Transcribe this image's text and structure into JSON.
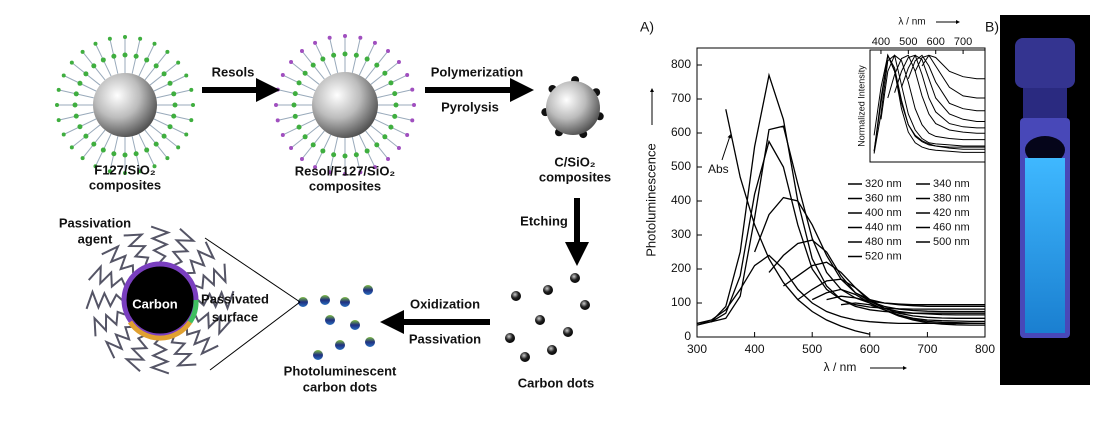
{
  "schematic": {
    "sphere1_label": [
      "F127/SiO₂",
      "composites"
    ],
    "arrow1_label": "Resols",
    "sphere2_label": [
      "Resol/F127/SiO₂",
      "composites"
    ],
    "arrow2_labels": [
      "Polymerization",
      "Pyrolysis"
    ],
    "sphere3_label": [
      "C/SiO₂",
      "composites"
    ],
    "arrow3_label": "Etching",
    "dots_label": "Carbon dots",
    "arrow4_labels": [
      "Oxidization",
      "Passivation"
    ],
    "pl_dots_label": [
      "Photoluminescent",
      "carbon dots"
    ],
    "agent_label": [
      "Passivation",
      "agent"
    ],
    "core_label": "Carbon",
    "surface_label": [
      "Passivated",
      "surface"
    ]
  },
  "panel_a_label": "A)",
  "panel_b_label": "B)",
  "chart_data": {
    "type": "line",
    "x_label": "λ / nm",
    "y_label": "Photoluminescence",
    "x": [
      300,
      325,
      350,
      375,
      400,
      425,
      450,
      475,
      500,
      525,
      550,
      575,
      600,
      625,
      650,
      675,
      700,
      725,
      750,
      775,
      800
    ],
    "xlim": [
      300,
      800
    ],
    "xticks": [
      300,
      400,
      500,
      600,
      700,
      800
    ],
    "ylim": [
      0,
      850
    ],
    "yticks": [
      0,
      100,
      200,
      300,
      400,
      500,
      600,
      700,
      800
    ],
    "series": [
      {
        "name": "320 nm",
        "color": "#c0392b",
        "values": [
          40,
          50,
          80,
          140,
          210,
          240,
          200,
          140,
          100,
          75,
          60,
          50,
          45,
          42,
          40,
          40,
          40,
          40,
          40,
          40,
          40
        ]
      },
      {
        "name": "340 nm",
        "color": "#b63fb0",
        "values": [
          35,
          45,
          90,
          250,
          560,
          770,
          640,
          400,
          230,
          150,
          110,
          90,
          80,
          75,
          72,
          70,
          70,
          70,
          70,
          70,
          70
        ]
      },
      {
        "name": "360 nm",
        "color": "#8e44ad",
        "values": [
          40,
          45,
          70,
          180,
          420,
          575,
          500,
          330,
          200,
          140,
          110,
          95,
          88,
          85,
          83,
          82,
          82,
          82,
          82,
          82,
          82
        ]
      },
      {
        "name": "380 nm",
        "color": "#1f5fa8",
        "values": [
          null,
          45,
          55,
          120,
          350,
          610,
          620,
          450,
          290,
          190,
          140,
          115,
          105,
          100,
          97,
          95,
          95,
          95,
          95,
          95,
          95
        ]
      },
      {
        "name": "400 nm",
        "color": "#2c3e9a",
        "values": [
          null,
          null,
          null,
          null,
          250,
          360,
          410,
          400,
          330,
          240,
          170,
          130,
          110,
          100,
          95,
          92,
          90,
          90,
          90,
          90,
          90
        ]
      },
      {
        "name": "420 nm",
        "color": "#168090",
        "values": [
          null,
          null,
          null,
          null,
          null,
          190,
          240,
          275,
          285,
          250,
          180,
          130,
          105,
          90,
          82,
          78,
          76,
          75,
          75,
          75,
          75
        ]
      },
      {
        "name": "440 nm",
        "color": "#27a060",
        "values": [
          null,
          null,
          null,
          null,
          null,
          null,
          150,
          180,
          210,
          220,
          190,
          145,
          105,
          85,
          75,
          70,
          68,
          66,
          65,
          65,
          65
        ]
      },
      {
        "name": "460 nm",
        "color": "#5fb83c",
        "values": [
          null,
          null,
          null,
          null,
          null,
          null,
          null,
          110,
          140,
          165,
          170,
          145,
          110,
          85,
          70,
          62,
          58,
          56,
          55,
          55,
          55
        ]
      },
      {
        "name": "480 nm",
        "color": "#e3d33a",
        "values": [
          null,
          null,
          null,
          null,
          null,
          null,
          null,
          null,
          110,
          130,
          140,
          125,
          100,
          80,
          65,
          55,
          50,
          48,
          47,
          46,
          46
        ]
      },
      {
        "name": "500 nm",
        "color": "#f09a5c",
        "values": [
          null,
          null,
          null,
          null,
          null,
          null,
          null,
          null,
          null,
          110,
          120,
          115,
          100,
          80,
          62,
          52,
          46,
          43,
          42,
          41,
          40
        ]
      },
      {
        "name": "520 nm",
        "color": "#c27ae0",
        "values": [
          null,
          null,
          null,
          null,
          null,
          null,
          null,
          null,
          null,
          null,
          95,
          100,
          95,
          80,
          62,
          50,
          42,
          38,
          36,
          35,
          35
        ]
      }
    ],
    "absorbance": {
      "name": "Abs",
      "color": "#000000",
      "values": [
        null,
        null,
        670,
        470,
        330,
        230,
        160,
        110,
        75,
        50,
        32,
        18,
        8,
        null,
        null,
        null,
        null,
        null,
        null,
        null,
        null
      ]
    },
    "inset": {
      "x_label": "λ / nm",
      "y_label": "Normalized Intensity",
      "x": [
        375,
        400,
        425,
        450,
        475,
        500,
        525,
        550,
        575,
        600,
        650,
        700,
        750,
        780
      ],
      "xlim": [
        360,
        780
      ],
      "xticks": [
        400,
        500,
        600,
        700
      ],
      "ylim": [
        0,
        1.05
      ],
      "series": [
        {
          "values": [
            0.25,
            0.7,
            1,
            0.85,
            0.55,
            0.35,
            0.25,
            0.2,
            0.17,
            0.15,
            0.13,
            0.12,
            0.12,
            0.12
          ]
        },
        {
          "values": [
            0.1,
            0.6,
            1,
            0.85,
            0.5,
            0.28,
            0.18,
            0.14,
            0.12,
            0.11,
            0.1,
            0.09,
            0.09,
            0.09
          ]
        },
        {
          "values": [
            0.1,
            0.55,
            1,
            0.88,
            0.58,
            0.35,
            0.24,
            0.19,
            0.16,
            0.15,
            0.14,
            0.14,
            0.14,
            0.14
          ]
        },
        {
          "values": [
            0.08,
            0.45,
            0.95,
            1,
            0.72,
            0.45,
            0.3,
            0.22,
            0.18,
            0.17,
            0.16,
            0.15,
            0.15,
            0.15
          ]
        },
        {
          "values": [
            null,
            0.4,
            0.85,
            1,
            0.95,
            0.75,
            0.5,
            0.35,
            0.27,
            0.24,
            0.22,
            0.21,
            0.21,
            0.21
          ]
        },
        {
          "values": [
            null,
            null,
            0.6,
            0.82,
            0.97,
            1,
            0.85,
            0.62,
            0.45,
            0.36,
            0.3,
            0.28,
            0.27,
            0.27
          ]
        },
        {
          "values": [
            null,
            null,
            null,
            0.65,
            0.85,
            0.98,
            1,
            0.82,
            0.6,
            0.47,
            0.36,
            0.33,
            0.32,
            0.32
          ]
        },
        {
          "values": [
            null,
            null,
            null,
            null,
            0.7,
            0.88,
            1,
            0.96,
            0.78,
            0.6,
            0.45,
            0.4,
            0.38,
            0.38
          ]
        },
        {
          "values": [
            null,
            null,
            null,
            null,
            null,
            0.78,
            0.95,
            1,
            0.9,
            0.75,
            0.55,
            0.5,
            0.48,
            0.48
          ]
        },
        {
          "values": [
            null,
            null,
            null,
            null,
            null,
            null,
            0.85,
            0.98,
            1,
            0.9,
            0.7,
            0.62,
            0.6,
            0.6
          ]
        },
        {
          "values": [
            null,
            null,
            null,
            null,
            null,
            null,
            null,
            0.9,
            1,
            0.98,
            0.85,
            0.8,
            0.78,
            0.78
          ]
        }
      ]
    }
  }
}
